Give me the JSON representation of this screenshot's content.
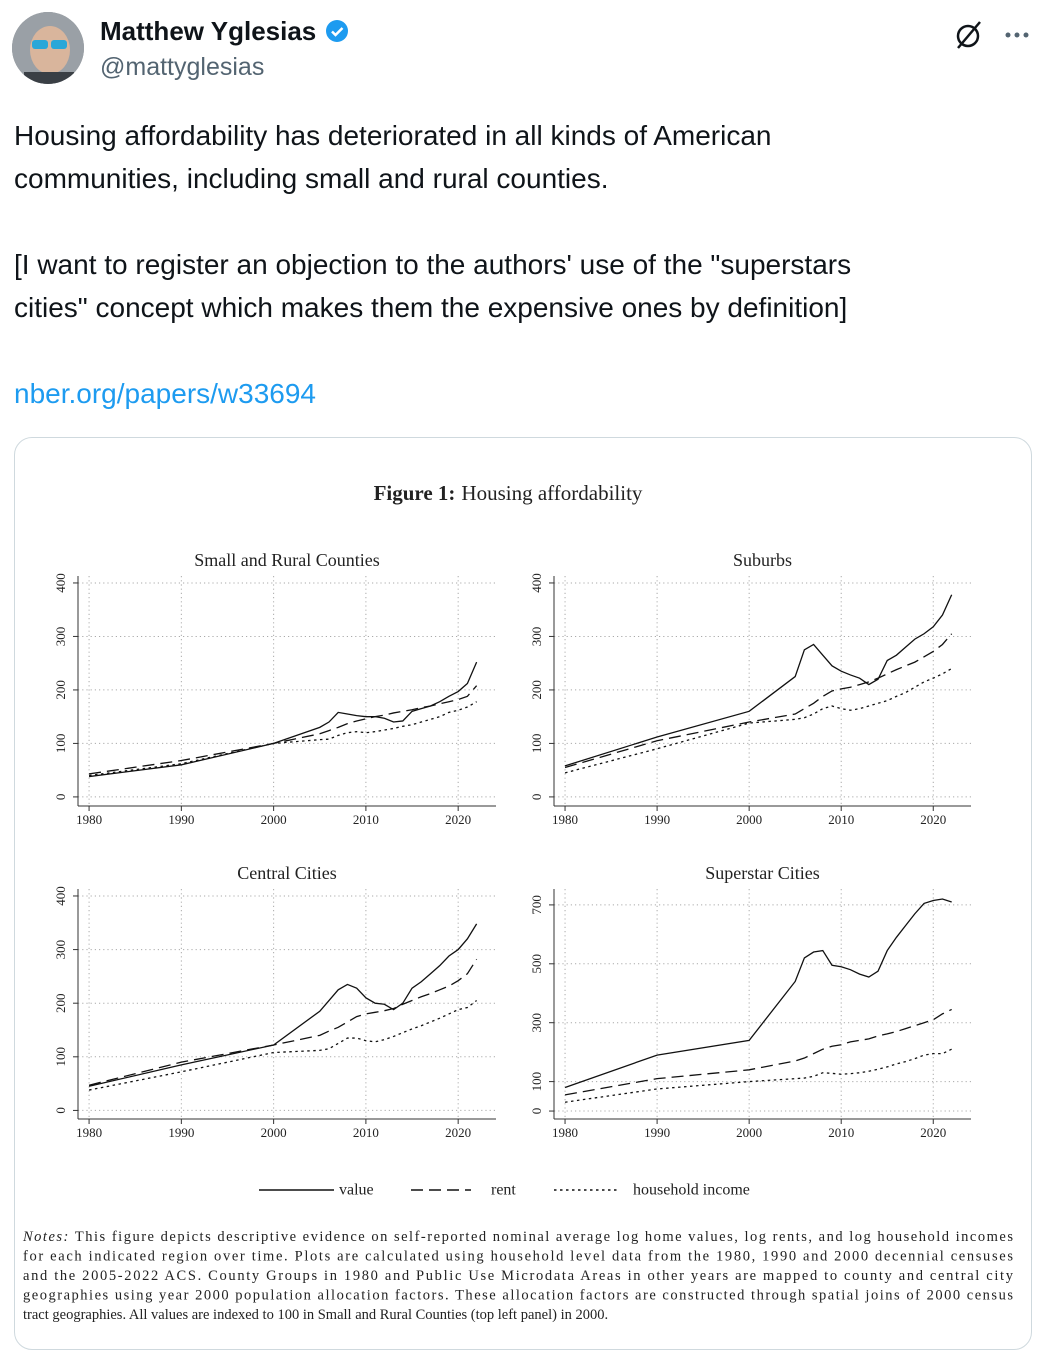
{
  "tweet": {
    "name": "Matthew Yglesias",
    "handle": "@mattyglesias",
    "paragraphs": [
      [
        "Housing affordability has deteriorated in all kinds of American",
        "communities, including small and rural counties."
      ],
      [
        "[I want to register an objection to the authors' use of the \"superstars",
        "cities\" concept which makes them the expensive ones by definition]"
      ]
    ],
    "link": "nber.org/papers/w33694"
  },
  "figure": {
    "label": "Figure 1:",
    "title": "Housing affordability",
    "legend": [
      {
        "name": "value",
        "dash": "solid"
      },
      {
        "name": "rent",
        "dash": "dashed"
      },
      {
        "name": "household income",
        "dash": "dotted"
      }
    ],
    "notes_label": "Notes:",
    "notes": [
      "This figure depicts descriptive evidence on self-reported nominal average log home values, log rents, and log household incomes",
      "for each indicated region over time.  Plots are calculated using household level data from the 1980, 1990 and 2000 decennial censuses",
      "and the 2005-2022 ACS.  County Groups in 1980 and Public Use Microdata Areas in other years are mapped to county and central city",
      "geographies using year 2000 population allocation factors.  These allocation factors are constructed through spatial joins of 2000 census",
      "tract geographies.  All values are indexed to 100 in Small and Rural Counties (top left panel) in 2000."
    ]
  },
  "chart_data": [
    {
      "type": "line",
      "title": "Small and Rural Counties",
      "x": [
        1980,
        1990,
        2000,
        2005,
        2006,
        2007,
        2008,
        2009,
        2010,
        2011,
        2012,
        2013,
        2014,
        2015,
        2016,
        2017,
        2018,
        2019,
        2020,
        2021,
        2022
      ],
      "series": [
        {
          "dash": "solid",
          "values": [
            38,
            60,
            100,
            130,
            140,
            158,
            155,
            152,
            150,
            150,
            147,
            140,
            142,
            160,
            165,
            170,
            178,
            188,
            197,
            212,
            252
          ]
        },
        {
          "dash": "dashed",
          "values": [
            43,
            68,
            100,
            118,
            124,
            130,
            137,
            142,
            146,
            150,
            153,
            157,
            160,
            163,
            167,
            170,
            174,
            178,
            182,
            188,
            208
          ]
        },
        {
          "dash": "dotted",
          "values": [
            40,
            62,
            100,
            107,
            108,
            115,
            120,
            122,
            120,
            122,
            125,
            128,
            132,
            135,
            140,
            145,
            150,
            158,
            162,
            168,
            178
          ]
        }
      ],
      "xlim": [
        1978.8,
        2024.1
      ],
      "xticks": [
        1980,
        1990,
        2000,
        2010,
        2020
      ],
      "ylim": [
        -17,
        413
      ],
      "yticks": [
        0,
        100,
        200,
        300,
        400
      ],
      "grid": true
    },
    {
      "type": "line",
      "title": "Suburbs",
      "x": [
        1980,
        1990,
        2000,
        2005,
        2006,
        2007,
        2008,
        2009,
        2010,
        2011,
        2012,
        2013,
        2014,
        2015,
        2016,
        2017,
        2018,
        2019,
        2020,
        2021,
        2022
      ],
      "series": [
        {
          "dash": "solid",
          "values": [
            58,
            112,
            160,
            225,
            275,
            285,
            265,
            245,
            235,
            228,
            222,
            210,
            220,
            255,
            265,
            280,
            295,
            305,
            318,
            340,
            378
          ]
        },
        {
          "dash": "dashed",
          "values": [
            55,
            105,
            140,
            155,
            165,
            175,
            188,
            198,
            202,
            205,
            210,
            215,
            222,
            230,
            238,
            245,
            252,
            262,
            272,
            285,
            305
          ]
        },
        {
          "dash": "dotted",
          "values": [
            45,
            90,
            138,
            145,
            148,
            155,
            165,
            170,
            165,
            162,
            165,
            170,
            175,
            180,
            188,
            195,
            205,
            215,
            222,
            230,
            240
          ]
        }
      ],
      "xlim": [
        1978.8,
        2024.1
      ],
      "xticks": [
        1980,
        1990,
        2000,
        2010,
        2020
      ],
      "ylim": [
        -17,
        413
      ],
      "yticks": [
        0,
        100,
        200,
        300,
        400
      ],
      "grid": true
    },
    {
      "type": "line",
      "title": "Central Cities",
      "x": [
        1980,
        1990,
        2000,
        2005,
        2006,
        2007,
        2008,
        2009,
        2010,
        2011,
        2012,
        2013,
        2014,
        2015,
        2016,
        2017,
        2018,
        2019,
        2020,
        2021,
        2022
      ],
      "series": [
        {
          "dash": "solid",
          "values": [
            45,
            85,
            122,
            185,
            205,
            225,
            235,
            228,
            210,
            200,
            198,
            188,
            200,
            228,
            240,
            255,
            270,
            288,
            300,
            320,
            348
          ]
        },
        {
          "dash": "dashed",
          "values": [
            47,
            90,
            122,
            140,
            148,
            155,
            165,
            175,
            180,
            183,
            186,
            190,
            198,
            205,
            212,
            218,
            225,
            232,
            242,
            255,
            282
          ]
        },
        {
          "dash": "dotted",
          "values": [
            38,
            72,
            108,
            112,
            115,
            125,
            135,
            135,
            130,
            128,
            132,
            138,
            145,
            152,
            158,
            165,
            172,
            180,
            188,
            192,
            205
          ]
        }
      ],
      "xlim": [
        1978.8,
        2024.1
      ],
      "xticks": [
        1980,
        1990,
        2000,
        2010,
        2020
      ],
      "ylim": [
        -16,
        413
      ],
      "yticks": [
        0,
        100,
        200,
        300,
        400
      ],
      "grid": true
    },
    {
      "type": "line",
      "title": "Superstar Cities",
      "x": [
        1980,
        1990,
        2000,
        2005,
        2006,
        2007,
        2008,
        2009,
        2010,
        2011,
        2012,
        2013,
        2014,
        2015,
        2016,
        2017,
        2018,
        2019,
        2020,
        2021,
        2022
      ],
      "series": [
        {
          "dash": "solid",
          "values": [
            80,
            190,
            240,
            440,
            520,
            540,
            545,
            495,
            490,
            480,
            465,
            455,
            475,
            545,
            590,
            630,
            670,
            705,
            715,
            720,
            710
          ]
        },
        {
          "dash": "dashed",
          "values": [
            55,
            110,
            140,
            170,
            180,
            195,
            210,
            220,
            225,
            235,
            240,
            245,
            255,
            262,
            270,
            280,
            290,
            300,
            310,
            330,
            345
          ]
        },
        {
          "dash": "dotted",
          "values": [
            30,
            75,
            100,
            110,
            112,
            118,
            130,
            128,
            125,
            127,
            130,
            135,
            142,
            150,
            160,
            168,
            178,
            190,
            195,
            195,
            210
          ]
        }
      ],
      "xlim": [
        1978.8,
        2024.1
      ],
      "xticks": [
        1980,
        1990,
        2000,
        2010,
        2020
      ],
      "ylim": [
        -27,
        754
      ],
      "yticks": [
        0,
        100,
        300,
        500,
        700
      ],
      "grid": true
    }
  ]
}
